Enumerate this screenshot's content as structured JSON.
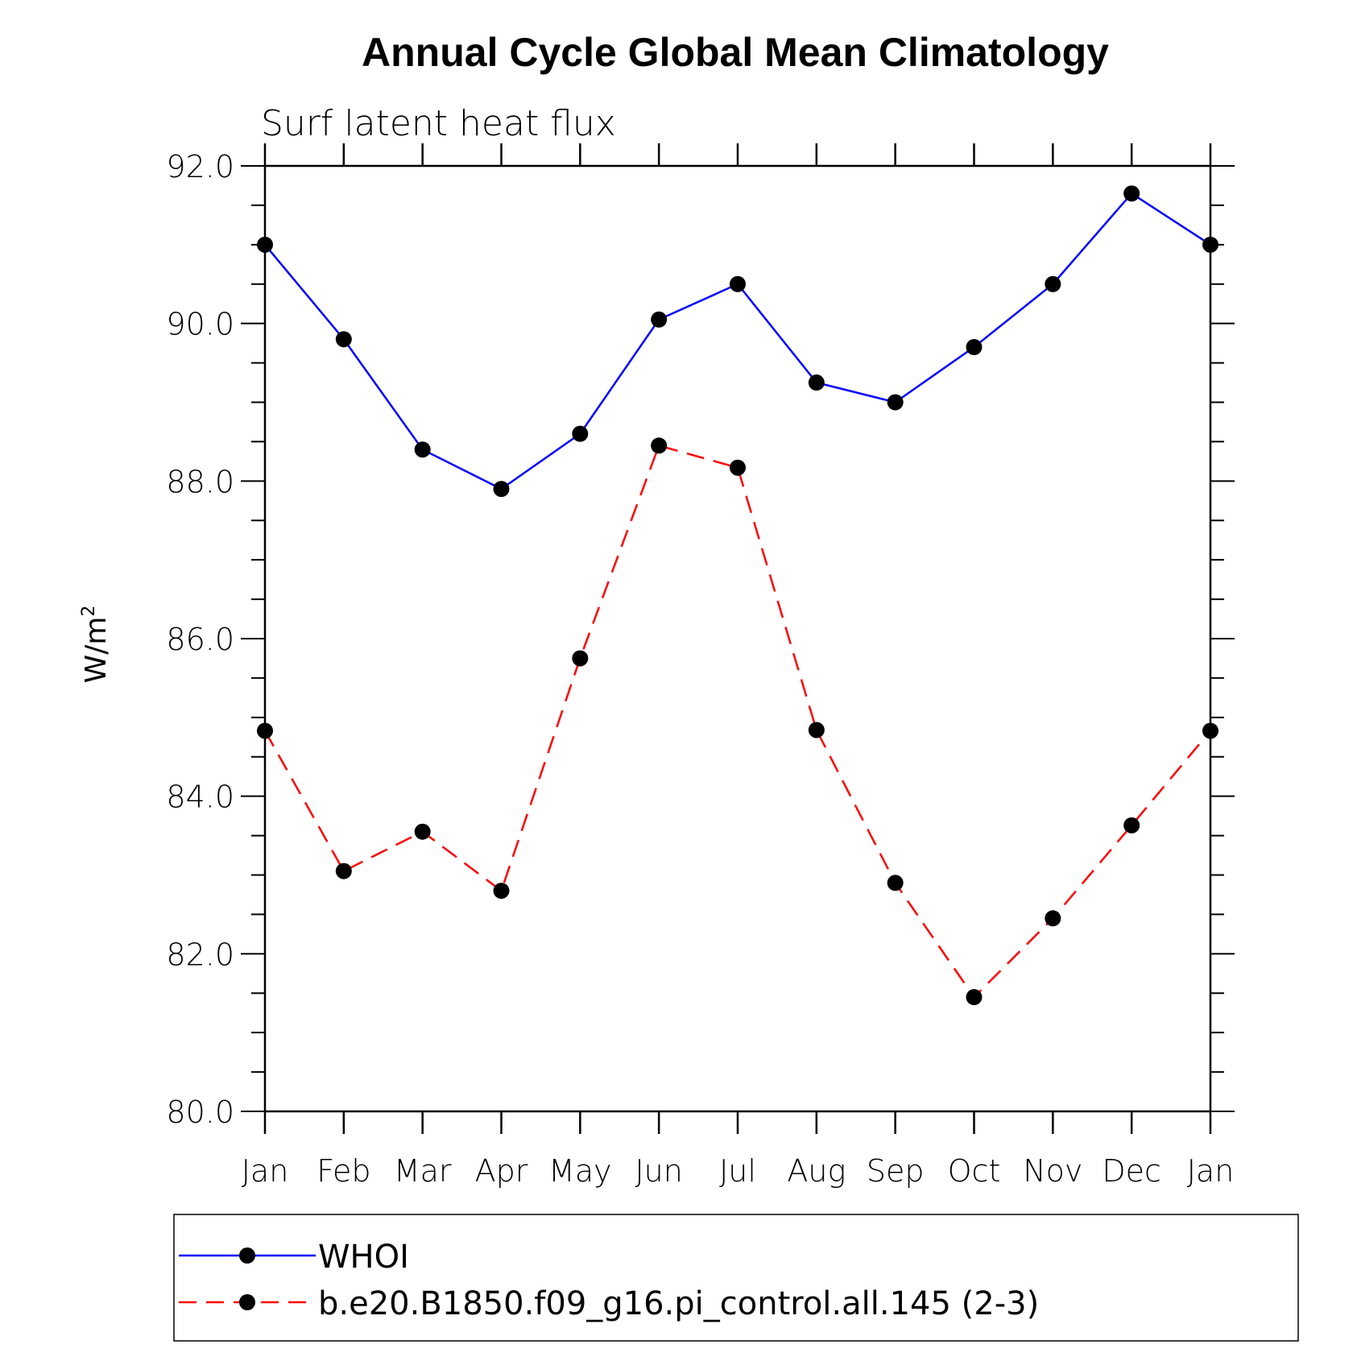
{
  "chart_data": {
    "type": "line",
    "title": "Annual Cycle Global Mean Climatology",
    "subtitle": "Surf latent heat flux",
    "ylabel": "W/m",
    "ylabel_sup": "2",
    "xlabel": "",
    "categories": [
      "Jan",
      "Feb",
      "Mar",
      "Apr",
      "May",
      "Jun",
      "Jul",
      "Aug",
      "Sep",
      "Oct",
      "Nov",
      "Dec",
      "Jan"
    ],
    "ylim": [
      80.0,
      92.0
    ],
    "yticks": [
      80.0,
      82.0,
      84.0,
      86.0,
      88.0,
      90.0,
      92.0
    ],
    "ytick_labels": [
      "80.0",
      "82.0",
      "84.0",
      "86.0",
      "88.0",
      "90.0",
      "92.0"
    ],
    "grid": false,
    "legend_position": "bottom",
    "series": [
      {
        "name": "WHOI",
        "color": "#0000ff",
        "dash": "solid",
        "marker": "filled-circle",
        "values": [
          91.0,
          89.8,
          88.4,
          87.9,
          88.6,
          90.05,
          90.5,
          89.25,
          89.0,
          89.7,
          90.5,
          91.65,
          91.0
        ]
      },
      {
        "name": "b.e20.B1850.f09_g16.pi_control.all.145 (2-3)",
        "color": "#ff0000",
        "dash": "dashed",
        "marker": "filled-circle",
        "values": [
          84.83,
          83.05,
          83.55,
          82.8,
          85.75,
          88.45,
          88.17,
          84.84,
          82.9,
          81.45,
          82.45,
          83.63,
          84.83
        ]
      }
    ]
  }
}
